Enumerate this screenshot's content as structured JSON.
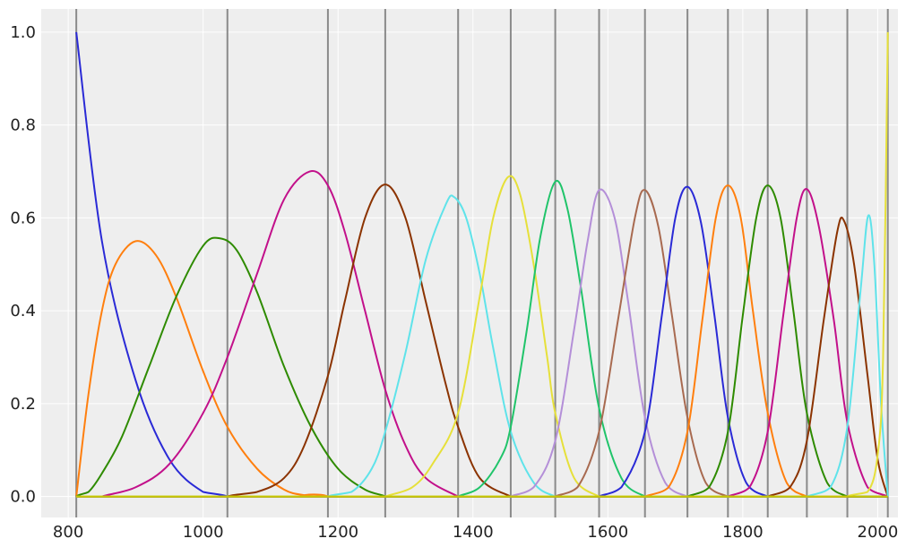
{
  "chart_data": {
    "type": "line",
    "title": "",
    "xlabel": "",
    "ylabel": "",
    "xlim": [
      760,
      2030
    ],
    "ylim": [
      -0.045,
      1.05
    ],
    "x_ticks": [
      800,
      1000,
      1200,
      1400,
      1600,
      1800,
      2000
    ],
    "x_tick_labels": [
      "800",
      "1000",
      "1200",
      "1400",
      "1600",
      "1800",
      "2000"
    ],
    "y_ticks": [
      0.0,
      0.2,
      0.4,
      0.6,
      0.8,
      1.0
    ],
    "y_tick_labels": [
      "0.0",
      "0.2",
      "0.4",
      "0.6",
      "0.8",
      "1.0"
    ],
    "grid": true,
    "background": "#eeeeee",
    "grid_color": "#ffffff",
    "knots": [
      812,
      1036,
      1185,
      1270,
      1378,
      1456,
      1522,
      1587,
      1655,
      1718,
      1778,
      1837,
      1895,
      1955,
      2015
    ],
    "knot_color": "#8a8a8a",
    "series": [
      {
        "color": "#2a2ad6",
        "x": [
          812,
          850,
          900,
          950,
          1000,
          1036
        ],
        "y": [
          1.0,
          0.55,
          0.25,
          0.08,
          0.01,
          0.0
        ]
      },
      {
        "color": "#ff7f0e",
        "x": [
          812,
          830,
          850,
          870,
          900,
          930,
          960,
          1000,
          1036,
          1080,
          1120,
          1150,
          1185
        ],
        "y": [
          0.0,
          0.22,
          0.4,
          0.5,
          0.55,
          0.52,
          0.43,
          0.27,
          0.15,
          0.06,
          0.015,
          0.003,
          0.0
        ]
      },
      {
        "color": "#2e8b00",
        "x": [
          812,
          830,
          850,
          880,
          920,
          960,
          1000,
          1025,
          1050,
          1080,
          1120,
          1160,
          1200,
          1240,
          1270
        ],
        "y": [
          0.0,
          0.01,
          0.05,
          0.13,
          0.28,
          0.43,
          0.54,
          0.556,
          0.53,
          0.44,
          0.28,
          0.15,
          0.06,
          0.015,
          0.0
        ]
      },
      {
        "color": "#c2108a",
        "x": [
          850,
          900,
          950,
          1000,
          1036,
          1080,
          1120,
          1158,
          1185,
          1210,
          1240,
          1270,
          1300,
          1330,
          1378
        ],
        "y": [
          0.0,
          0.02,
          0.07,
          0.18,
          0.3,
          0.48,
          0.64,
          0.7,
          0.67,
          0.57,
          0.4,
          0.23,
          0.11,
          0.04,
          0.0
        ]
      },
      {
        "color": "#8b3300",
        "x": [
          1036,
          1080,
          1120,
          1150,
          1185,
          1210,
          1240,
          1270,
          1300,
          1330,
          1360,
          1378,
          1410,
          1456
        ],
        "y": [
          0.0,
          0.01,
          0.04,
          0.11,
          0.26,
          0.42,
          0.6,
          0.672,
          0.6,
          0.42,
          0.24,
          0.15,
          0.04,
          0.0
        ]
      },
      {
        "color": "#5fe3ea",
        "x": [
          1185,
          1220,
          1250,
          1270,
          1300,
          1330,
          1360,
          1372,
          1390,
          1410,
          1430,
          1456,
          1490,
          1522
        ],
        "y": [
          0.0,
          0.01,
          0.06,
          0.14,
          0.31,
          0.51,
          0.63,
          0.645,
          0.6,
          0.48,
          0.32,
          0.14,
          0.03,
          0.0
        ]
      },
      {
        "color": "#e6e03a",
        "x": [
          1270,
          1310,
          1340,
          1378,
          1410,
          1430,
          1452,
          1470,
          1490,
          1510,
          1522,
          1550,
          1587
        ],
        "y": [
          0.0,
          0.02,
          0.07,
          0.18,
          0.43,
          0.6,
          0.688,
          0.65,
          0.5,
          0.3,
          0.18,
          0.04,
          0.0
        ]
      },
      {
        "color": "#20c46a",
        "x": [
          1378,
          1410,
          1440,
          1456,
          1480,
          1500,
          1522,
          1540,
          1560,
          1587,
          1620,
          1655
        ],
        "y": [
          0.0,
          0.02,
          0.08,
          0.15,
          0.36,
          0.56,
          0.678,
          0.62,
          0.45,
          0.19,
          0.04,
          0.0
        ]
      },
      {
        "color": "#b48fd8",
        "x": [
          1456,
          1490,
          1522,
          1550,
          1570,
          1587,
          1610,
          1630,
          1655,
          1685,
          1718
        ],
        "y": [
          0.0,
          0.02,
          0.12,
          0.36,
          0.55,
          0.66,
          0.6,
          0.42,
          0.17,
          0.03,
          0.0
        ]
      },
      {
        "color": "#a86a50",
        "x": [
          1522,
          1555,
          1587,
          1615,
          1640,
          1655,
          1675,
          1695,
          1718,
          1745,
          1778
        ],
        "y": [
          0.0,
          0.02,
          0.14,
          0.38,
          0.6,
          0.66,
          0.58,
          0.39,
          0.17,
          0.03,
          0.0
        ]
      },
      {
        "color": "#2a2ad6",
        "x": [
          1587,
          1620,
          1655,
          1680,
          1700,
          1718,
          1738,
          1758,
          1778,
          1805,
          1837
        ],
        "y": [
          0.0,
          0.02,
          0.14,
          0.39,
          0.6,
          0.667,
          0.59,
          0.39,
          0.17,
          0.03,
          0.0
        ]
      },
      {
        "color": "#ff7f0e",
        "x": [
          1655,
          1690,
          1718,
          1740,
          1760,
          1778,
          1797,
          1815,
          1837,
          1865,
          1895
        ],
        "y": [
          0.0,
          0.02,
          0.14,
          0.38,
          0.6,
          0.67,
          0.6,
          0.4,
          0.18,
          0.03,
          0.0
        ]
      },
      {
        "color": "#2e8b00",
        "x": [
          1718,
          1750,
          1778,
          1800,
          1820,
          1837,
          1856,
          1875,
          1895,
          1925,
          1955
        ],
        "y": [
          0.0,
          0.02,
          0.14,
          0.39,
          0.6,
          0.67,
          0.6,
          0.4,
          0.18,
          0.03,
          0.0
        ]
      },
      {
        "color": "#c2108a",
        "x": [
          1778,
          1810,
          1837,
          1860,
          1880,
          1895,
          1913,
          1935,
          1955,
          1985,
          2015
        ],
        "y": [
          0.0,
          0.02,
          0.14,
          0.39,
          0.6,
          0.662,
          0.58,
          0.38,
          0.16,
          0.02,
          0.0
        ]
      },
      {
        "color": "#8b3300",
        "x": [
          1837,
          1870,
          1895,
          1920,
          1940,
          1950,
          1965,
          1985,
          2000,
          2015
        ],
        "y": [
          0.0,
          0.02,
          0.12,
          0.38,
          0.57,
          0.594,
          0.5,
          0.26,
          0.08,
          0.0
        ]
      },
      {
        "color": "#5fe3ea",
        "x": [
          1895,
          1930,
          1955,
          1975,
          1986,
          1995,
          2005,
          2015
        ],
        "y": [
          0.0,
          0.02,
          0.15,
          0.45,
          0.605,
          0.5,
          0.2,
          0.0
        ]
      },
      {
        "color": "#e6e03a",
        "x": [
          1955,
          1985,
          2000,
          2008,
          2015
        ],
        "y": [
          0.0,
          0.01,
          0.09,
          0.3,
          1.0
        ]
      },
      {
        "color": "#c8c800",
        "x": [
          812,
          2015
        ],
        "y": [
          0.0,
          0.0
        ]
      }
    ]
  }
}
